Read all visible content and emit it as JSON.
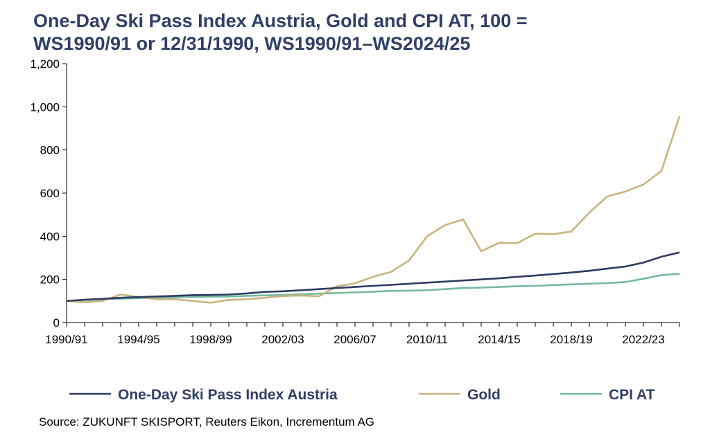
{
  "title_line1": "One-Day Ski Pass Index Austria, Gold and CPI AT, 100 =",
  "title_line2": "WS1990/91 or 12/31/1990, WS1990/91–WS2024/25",
  "source": "Source: ZUKUNFT SKISPORT, Reuters Eikon, Incrementum AG",
  "chart_data": {
    "type": "line",
    "title": "One-Day Ski Pass Index Austria, Gold and CPI AT, 100 = WS1990/91 or 12/31/1990, WS1990/91–WS2024/25",
    "x_tick_labels": [
      "1990/91",
      "1994/95",
      "1998/99",
      "2002/03",
      "2006/07",
      "2010/11",
      "2014/15",
      "2018/19",
      "2022/23"
    ],
    "y_ticks": [
      0,
      200,
      400,
      600,
      800,
      1000,
      1200
    ],
    "y_tick_labels": [
      "0",
      "200",
      "400",
      "600",
      "800",
      "1,000",
      "1,200"
    ],
    "ylim": [
      0,
      1200
    ],
    "grid": false,
    "legend_position": "bottom",
    "x": [
      "1990/91",
      "1991/92",
      "1992/93",
      "1993/94",
      "1994/95",
      "1995/96",
      "1996/97",
      "1997/98",
      "1998/99",
      "1999/00",
      "2000/01",
      "2001/02",
      "2002/03",
      "2003/04",
      "2004/05",
      "2005/06",
      "2006/07",
      "2007/08",
      "2008/09",
      "2009/10",
      "2010/11",
      "2011/12",
      "2012/13",
      "2013/14",
      "2014/15",
      "2015/16",
      "2016/17",
      "2017/18",
      "2018/19",
      "2019/20",
      "2020/21",
      "2021/22",
      "2022/23",
      "2023/24",
      "2024/25"
    ],
    "series": [
      {
        "name": "One-Day Ski Pass Index Austria",
        "color": "#2f3b62",
        "values": [
          100,
          106,
          110,
          115,
          118,
          121,
          124,
          127,
          128,
          130,
          135,
          142,
          145,
          150,
          155,
          160,
          165,
          170,
          175,
          180,
          185,
          190,
          195,
          200,
          205,
          212,
          218,
          225,
          232,
          240,
          250,
          260,
          278,
          305,
          325
        ]
      },
      {
        "name": "Gold",
        "color": "#c8b47e",
        "values": [
          100,
          94,
          100,
          130,
          118,
          108,
          108,
          100,
          92,
          105,
          108,
          115,
          123,
          125,
          122,
          168,
          182,
          212,
          235,
          288,
          400,
          452,
          478,
          330,
          370,
          368,
          412,
          410,
          422,
          510,
          585,
          607,
          640,
          703,
          956
        ]
      },
      {
        "name": "CPI AT",
        "color": "#74b9a0",
        "values": [
          100,
          104,
          108,
          111,
          113,
          115,
          117,
          119,
          120,
          121,
          124,
          126,
          128,
          131,
          134,
          137,
          140,
          143,
          147,
          148,
          150,
          155,
          160,
          162,
          165,
          168,
          170,
          174,
          177,
          180,
          183,
          188,
          203,
          220,
          226
        ]
      }
    ]
  }
}
